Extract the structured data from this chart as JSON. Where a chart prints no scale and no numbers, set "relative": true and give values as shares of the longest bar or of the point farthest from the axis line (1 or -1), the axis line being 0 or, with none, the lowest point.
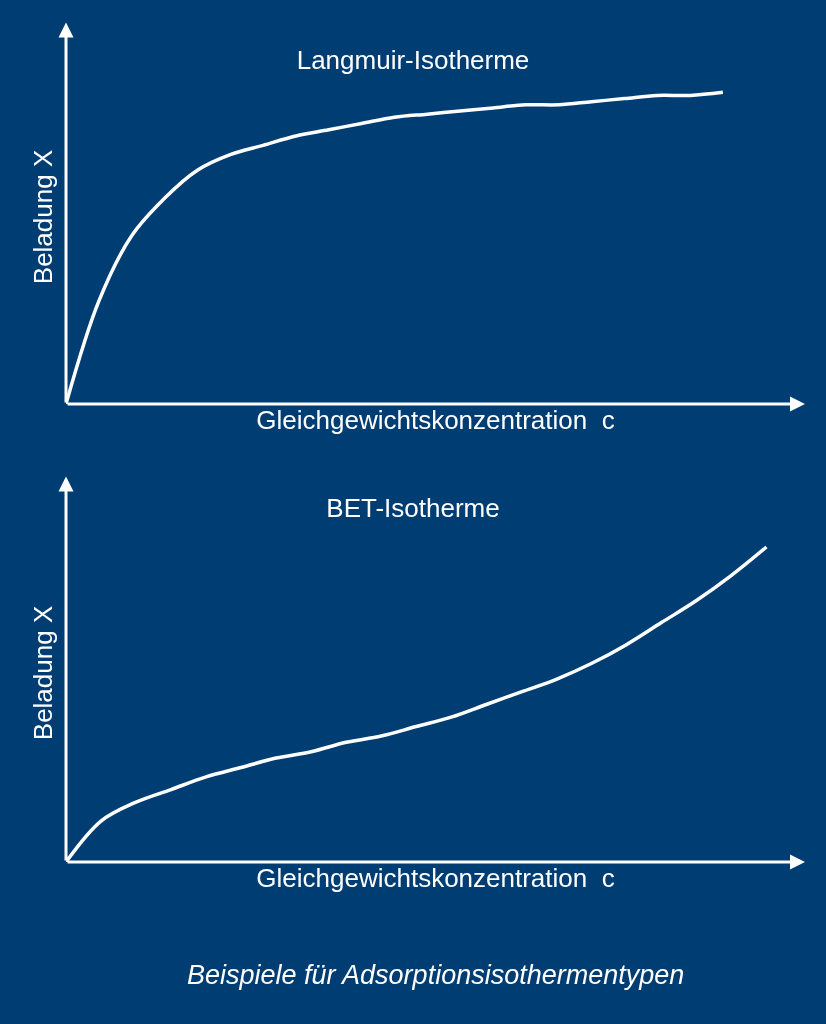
{
  "chart_data": [
    {
      "type": "line",
      "title": "Langmuir-Isotherme",
      "xlabel": "Gleichgewichtskonzentration  c",
      "ylabel": "Beladung X",
      "relative": true,
      "categories": [
        null,
        null,
        null,
        null,
        null,
        null,
        null,
        null,
        null,
        null,
        null,
        null,
        null,
        null,
        null,
        null,
        null,
        null,
        null,
        null,
        null
      ],
      "series": [
        {
          "color": "#ffffff",
          "values": [
            0,
            0.33,
            0.54,
            0.66,
            0.75,
            0.8,
            0.83,
            0.86,
            0.88,
            0.9,
            0.92,
            0.93,
            0.94,
            0.95,
            0.96,
            0.96,
            0.97,
            0.98,
            0.99,
            0.99,
            1
          ]
        }
      ]
    },
    {
      "type": "line",
      "title": "BET-Isotherme",
      "xlabel": "Gleichgewichtskonzentration  c",
      "ylabel": "Beladung X",
      "relative": true,
      "categories": [
        null,
        null,
        null,
        null,
        null,
        null,
        null,
        null,
        null,
        null,
        null,
        null,
        null,
        null,
        null,
        null,
        null,
        null,
        null,
        null,
        null
      ],
      "series": [
        {
          "color": "#ffffff",
          "values": [
            0,
            0.13,
            0.19,
            0.23,
            0.27,
            0.3,
            0.33,
            0.35,
            0.38,
            0.4,
            0.43,
            0.46,
            0.5,
            0.54,
            0.58,
            0.63,
            0.69,
            0.76,
            0.83,
            0.91,
            1
          ]
        }
      ],
      "annotations": [
        "Beispiele für Adsorptionsisothermentypen"
      ]
    }
  ]
}
